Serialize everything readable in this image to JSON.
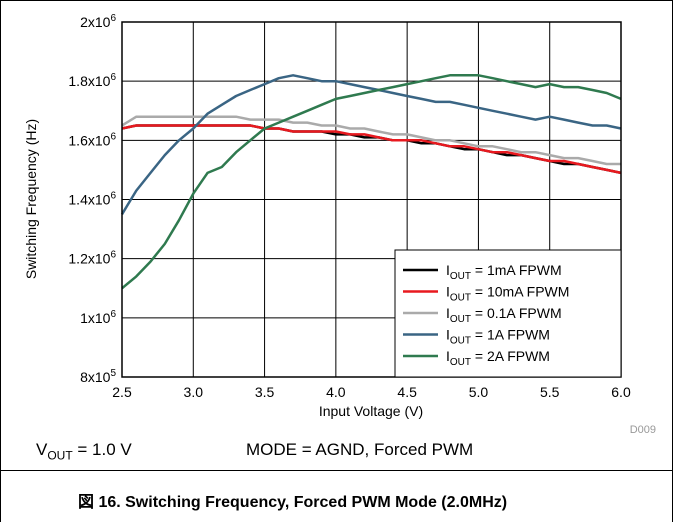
{
  "chart_data": {
    "type": "line",
    "xlabel": "Input Voltage (V)",
    "ylabel": "Switching Frequency (Hz)",
    "xlim": [
      2.5,
      6.0
    ],
    "ylim": [
      800000,
      2000000
    ],
    "x_ticks": [
      "2.5",
      "3.0",
      "3.5",
      "4.0",
      "4.5",
      "5.0",
      "5.5",
      "6.0"
    ],
    "y_ticks": [
      {
        "value": 800000,
        "mant": "8x10",
        "exp": "5"
      },
      {
        "value": 1000000,
        "mant": "1x10",
        "exp": "6"
      },
      {
        "value": 1200000,
        "mant": "1.2x10",
        "exp": "6"
      },
      {
        "value": 1400000,
        "mant": "1.4x10",
        "exp": "6"
      },
      {
        "value": 1600000,
        "mant": "1.6x10",
        "exp": "6"
      },
      {
        "value": 1800000,
        "mant": "1.8x10",
        "exp": "6"
      },
      {
        "value": 2000000,
        "mant": "2x10",
        "exp": "6"
      }
    ],
    "grid": true,
    "legend_position": "bottom-right",
    "x": [
      2.5,
      2.6,
      2.7,
      2.8,
      2.9,
      3.0,
      3.1,
      3.2,
      3.3,
      3.4,
      3.5,
      3.6,
      3.7,
      3.8,
      3.9,
      4.0,
      4.1,
      4.2,
      4.3,
      4.4,
      4.5,
      4.6,
      4.7,
      4.8,
      4.9,
      5.0,
      5.1,
      5.2,
      5.3,
      5.4,
      5.5,
      5.6,
      5.7,
      5.8,
      5.9,
      6.0
    ],
    "series": [
      {
        "sub": "OUT",
        "rest": " = 1mA FPWM",
        "color": "#000000",
        "values": [
          1640000,
          1650000,
          1650000,
          1650000,
          1650000,
          1650000,
          1650000,
          1650000,
          1650000,
          1650000,
          1640000,
          1640000,
          1630000,
          1630000,
          1630000,
          1620000,
          1620000,
          1610000,
          1610000,
          1600000,
          1600000,
          1590000,
          1590000,
          1580000,
          1570000,
          1570000,
          1560000,
          1550000,
          1550000,
          1540000,
          1530000,
          1520000,
          1520000,
          1510000,
          1500000,
          1490000
        ]
      },
      {
        "sub": "OUT",
        "rest": " = 10mA FPWM",
        "color": "#e8191f",
        "values": [
          1640000,
          1650000,
          1650000,
          1650000,
          1650000,
          1650000,
          1650000,
          1650000,
          1650000,
          1650000,
          1640000,
          1640000,
          1630000,
          1630000,
          1630000,
          1630000,
          1620000,
          1620000,
          1610000,
          1600000,
          1600000,
          1600000,
          1590000,
          1580000,
          1580000,
          1570000,
          1560000,
          1560000,
          1550000,
          1540000,
          1530000,
          1530000,
          1520000,
          1510000,
          1500000,
          1490000
        ]
      },
      {
        "sub": "OUT",
        "rest": " = 0.1A FPWM",
        "color": "#aaaaaa",
        "values": [
          1650000,
          1680000,
          1680000,
          1680000,
          1680000,
          1680000,
          1680000,
          1680000,
          1680000,
          1670000,
          1670000,
          1670000,
          1660000,
          1660000,
          1650000,
          1650000,
          1640000,
          1640000,
          1630000,
          1620000,
          1620000,
          1610000,
          1600000,
          1600000,
          1590000,
          1580000,
          1580000,
          1570000,
          1560000,
          1560000,
          1550000,
          1540000,
          1540000,
          1530000,
          1520000,
          1520000
        ]
      },
      {
        "sub": "OUT",
        "rest": " = 1A FPWM",
        "color": "#3a6584",
        "values": [
          1350000,
          1430000,
          1490000,
          1550000,
          1600000,
          1640000,
          1690000,
          1720000,
          1750000,
          1770000,
          1790000,
          1810000,
          1820000,
          1810000,
          1800000,
          1800000,
          1790000,
          1780000,
          1770000,
          1760000,
          1750000,
          1740000,
          1730000,
          1730000,
          1720000,
          1710000,
          1700000,
          1690000,
          1680000,
          1670000,
          1680000,
          1670000,
          1660000,
          1650000,
          1650000,
          1640000
        ]
      },
      {
        "sub": "OUT",
        "rest": " = 2A FPWM",
        "color": "#2f7a4f",
        "values": [
          1100000,
          1140000,
          1190000,
          1250000,
          1330000,
          1420000,
          1490000,
          1510000,
          1560000,
          1600000,
          1640000,
          1660000,
          1680000,
          1700000,
          1720000,
          1740000,
          1750000,
          1760000,
          1770000,
          1780000,
          1790000,
          1800000,
          1810000,
          1820000,
          1820000,
          1820000,
          1810000,
          1800000,
          1790000,
          1780000,
          1790000,
          1780000,
          1780000,
          1770000,
          1760000,
          1740000
        ]
      }
    ]
  },
  "series_prefix": "I",
  "code": "D009",
  "notes": {
    "vout_main": "V",
    "vout_sub": "OUT",
    "vout_rest": " = 1.0 V",
    "mode": "MODE = AGND, Forced PWM"
  },
  "caption": "図 16. Switching Frequency, Forced PWM Mode (2.0MHz)"
}
